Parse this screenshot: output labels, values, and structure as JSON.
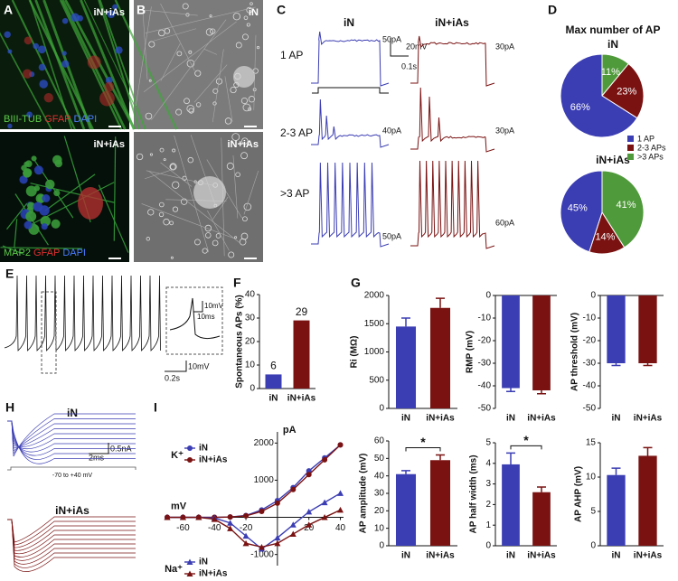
{
  "panel_letters": [
    "A",
    "B",
    "C",
    "D",
    "E",
    "F",
    "G",
    "H",
    "I"
  ],
  "panel_a": {
    "top_tag": "iN+iAs",
    "top_stains": [
      "BIII-TUB",
      "GFAP",
      "DAPI"
    ],
    "bottom_tag": "iN+iAs",
    "bottom_stains": [
      "MAP2",
      "GFAP",
      "DAPI"
    ]
  },
  "panel_b": {
    "top_tag": "iN",
    "bottom_tag": "iN+iAs"
  },
  "panel_c": {
    "columns": [
      "iN",
      "iN+iAs"
    ],
    "rows": [
      "1 AP",
      "2-3 AP",
      ">3 AP"
    ],
    "currents_in": [
      "50pA",
      "40pA",
      "50pA"
    ],
    "currents_in_ias": [
      "30pA",
      "30pA",
      "60pA"
    ],
    "scale_voltage": "20mV",
    "scale_time": "0.1s"
  },
  "panel_e": {
    "scale_time": "0.2s",
    "scale_voltage": "10mV",
    "inset_voltage": "10mV",
    "inset_time": "10ms"
  },
  "panel_h": {
    "groups": [
      "iN",
      "iN+iAs"
    ],
    "scale_current": "0.5nA",
    "scale_time": "2ms",
    "protocol": "-70 to +40 mV"
  },
  "chart_data": [
    {
      "type": "pie",
      "title": "Max number of AP",
      "subtitle": "iN",
      "categories": [
        "1 AP",
        "2-3 APs",
        ">3 APs"
      ],
      "values": [
        66,
        23,
        11
      ],
      "value_labels": [
        "66%",
        "23%",
        "11%"
      ],
      "colors": [
        "#3b3db3",
        "#7a1212",
        "#4f9a3a"
      ]
    },
    {
      "type": "pie",
      "subtitle": "iN+iAs",
      "values": [
        45,
        14,
        41
      ],
      "value_labels": [
        "45%",
        "14%",
        "41%"
      ],
      "colors": [
        "#3b3db3",
        "#7a1212",
        "#4f9a3a"
      ]
    },
    {
      "type": "bar",
      "ylabel": "Spontaneous APs (%)",
      "categories": [
        "iN",
        "iN+iAs"
      ],
      "values": [
        6,
        29
      ],
      "colors": [
        "#3b3db3",
        "#7a1212"
      ],
      "ylim": [
        0,
        40
      ],
      "yticks": [
        0,
        10,
        20,
        30,
        40
      ],
      "show_values": true
    },
    {
      "type": "bar",
      "ylabel": "Ri (MΩ)",
      "categories": [
        "iN",
        "iN+iAs"
      ],
      "values": [
        1450,
        1780
      ],
      "errors": [
        150,
        170
      ],
      "colors": [
        "#3b3db3",
        "#7a1212"
      ],
      "ylim": [
        0,
        2000
      ],
      "yticks": [
        0,
        500,
        1000,
        1500,
        2000
      ]
    },
    {
      "type": "bar",
      "ylabel": "RMP (mV)",
      "categories": [
        "iN",
        "iN+iAs"
      ],
      "values": [
        -41,
        -42
      ],
      "errors": [
        1.5,
        1.5
      ],
      "colors": [
        "#3b3db3",
        "#7a1212"
      ],
      "ylim": [
        -50,
        0
      ],
      "yticks": [
        0,
        -10,
        -20,
        -30,
        -40,
        -50
      ]
    },
    {
      "type": "bar",
      "ylabel": "AP threshold (mV)",
      "categories": [
        "iN",
        "iN+iAs"
      ],
      "values": [
        -30,
        -30
      ],
      "errors": [
        1,
        1
      ],
      "colors": [
        "#3b3db3",
        "#7a1212"
      ],
      "ylim": [
        -50,
        0
      ],
      "yticks": [
        0,
        -10,
        -20,
        -30,
        -40,
        -50
      ]
    },
    {
      "type": "bar",
      "ylabel": "AP amplitude (mV)",
      "categories": [
        "iN",
        "iN+iAs"
      ],
      "values": [
        41,
        49
      ],
      "errors": [
        2,
        3
      ],
      "colors": [
        "#3b3db3",
        "#7a1212"
      ],
      "ylim": [
        0,
        60
      ],
      "yticks": [
        0,
        10,
        20,
        30,
        40,
        50,
        60
      ],
      "significance": "*"
    },
    {
      "type": "bar",
      "ylabel": "AP half width (ms)",
      "categories": [
        "iN",
        "iN+iAs"
      ],
      "values": [
        3.95,
        2.6
      ],
      "errors": [
        0.55,
        0.25
      ],
      "colors": [
        "#3b3db3",
        "#7a1212"
      ],
      "ylim": [
        0,
        5
      ],
      "yticks": [
        0,
        1,
        2,
        3,
        4,
        5
      ],
      "significance": "*"
    },
    {
      "type": "bar",
      "ylabel": "AP AHP (mV)",
      "categories": [
        "iN",
        "iN+iAs"
      ],
      "values": [
        10.3,
        13.1
      ],
      "errors": [
        1,
        1.2
      ],
      "colors": [
        "#3b3db3",
        "#7a1212"
      ],
      "ylim": [
        0,
        15
      ],
      "yticks": [
        0,
        5,
        10,
        15
      ]
    },
    {
      "type": "line",
      "xlabel": "mV",
      "ylabel": "pA",
      "legend_groups": [
        "K⁺",
        "Na⁺"
      ],
      "x": [
        -70,
        -60,
        -50,
        -40,
        -30,
        -20,
        -10,
        0,
        10,
        20,
        30,
        40
      ],
      "series": [
        {
          "name": "iN",
          "color": "#3b3db3",
          "marker": "circle",
          "values": [
            0,
            0,
            0,
            0,
            10,
            50,
            200,
            450,
            800,
            1250,
            1600,
            1950
          ]
        },
        {
          "name": "iN+iAs",
          "color": "#7a1212",
          "marker": "circle",
          "values": [
            0,
            0,
            0,
            0,
            10,
            40,
            160,
            380,
            750,
            1150,
            1550,
            1950
          ]
        },
        {
          "name": "iN",
          "color": "#3b3db3",
          "marker": "triangle",
          "values": [
            0,
            0,
            0,
            -20,
            -150,
            -500,
            -850,
            -550,
            -200,
            150,
            400,
            650
          ]
        },
        {
          "name": "iN+iAs",
          "color": "#7a1212",
          "marker": "triangle",
          "values": [
            0,
            0,
            0,
            -50,
            -300,
            -700,
            -800,
            -700,
            -450,
            -200,
            0,
            200
          ]
        }
      ],
      "xlim": [
        -70,
        42
      ],
      "ylim": [
        -1300,
        2300
      ],
      "xticks": [
        -60,
        -40,
        -20,
        20,
        40
      ],
      "yticks": [
        -1000,
        1000,
        2000
      ]
    }
  ]
}
